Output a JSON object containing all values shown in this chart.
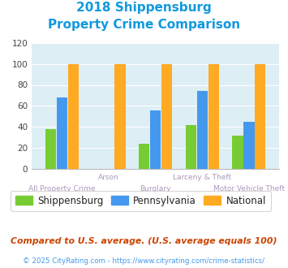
{
  "title_line1": "2018 Shippensburg",
  "title_line2": "Property Crime Comparison",
  "categories": [
    "All Property Crime",
    "Arson",
    "Burglary",
    "Larceny & Theft",
    "Motor Vehicle Theft"
  ],
  "shippensburg": [
    38,
    0,
    24,
    42,
    32
  ],
  "pennsylvania": [
    68,
    0,
    56,
    74,
    45
  ],
  "national": [
    100,
    100,
    100,
    100,
    100
  ],
  "color_shippensburg": "#77cc33",
  "color_pennsylvania": "#4499ee",
  "color_national": "#ffaa22",
  "ylim": [
    0,
    120
  ],
  "yticks": [
    0,
    20,
    40,
    60,
    80,
    100,
    120
  ],
  "bg_color": "#ddeef5",
  "footnote1": "Compared to U.S. average. (U.S. average equals 100)",
  "footnote2": "© 2025 CityRating.com - https://www.cityrating.com/crime-statistics/",
  "title_color": "#1199dd",
  "xlabel_color": "#aa99bb",
  "footnote1_color": "#cc4400",
  "footnote2_color": "#4499ee",
  "legend_text_color": "#222222"
}
